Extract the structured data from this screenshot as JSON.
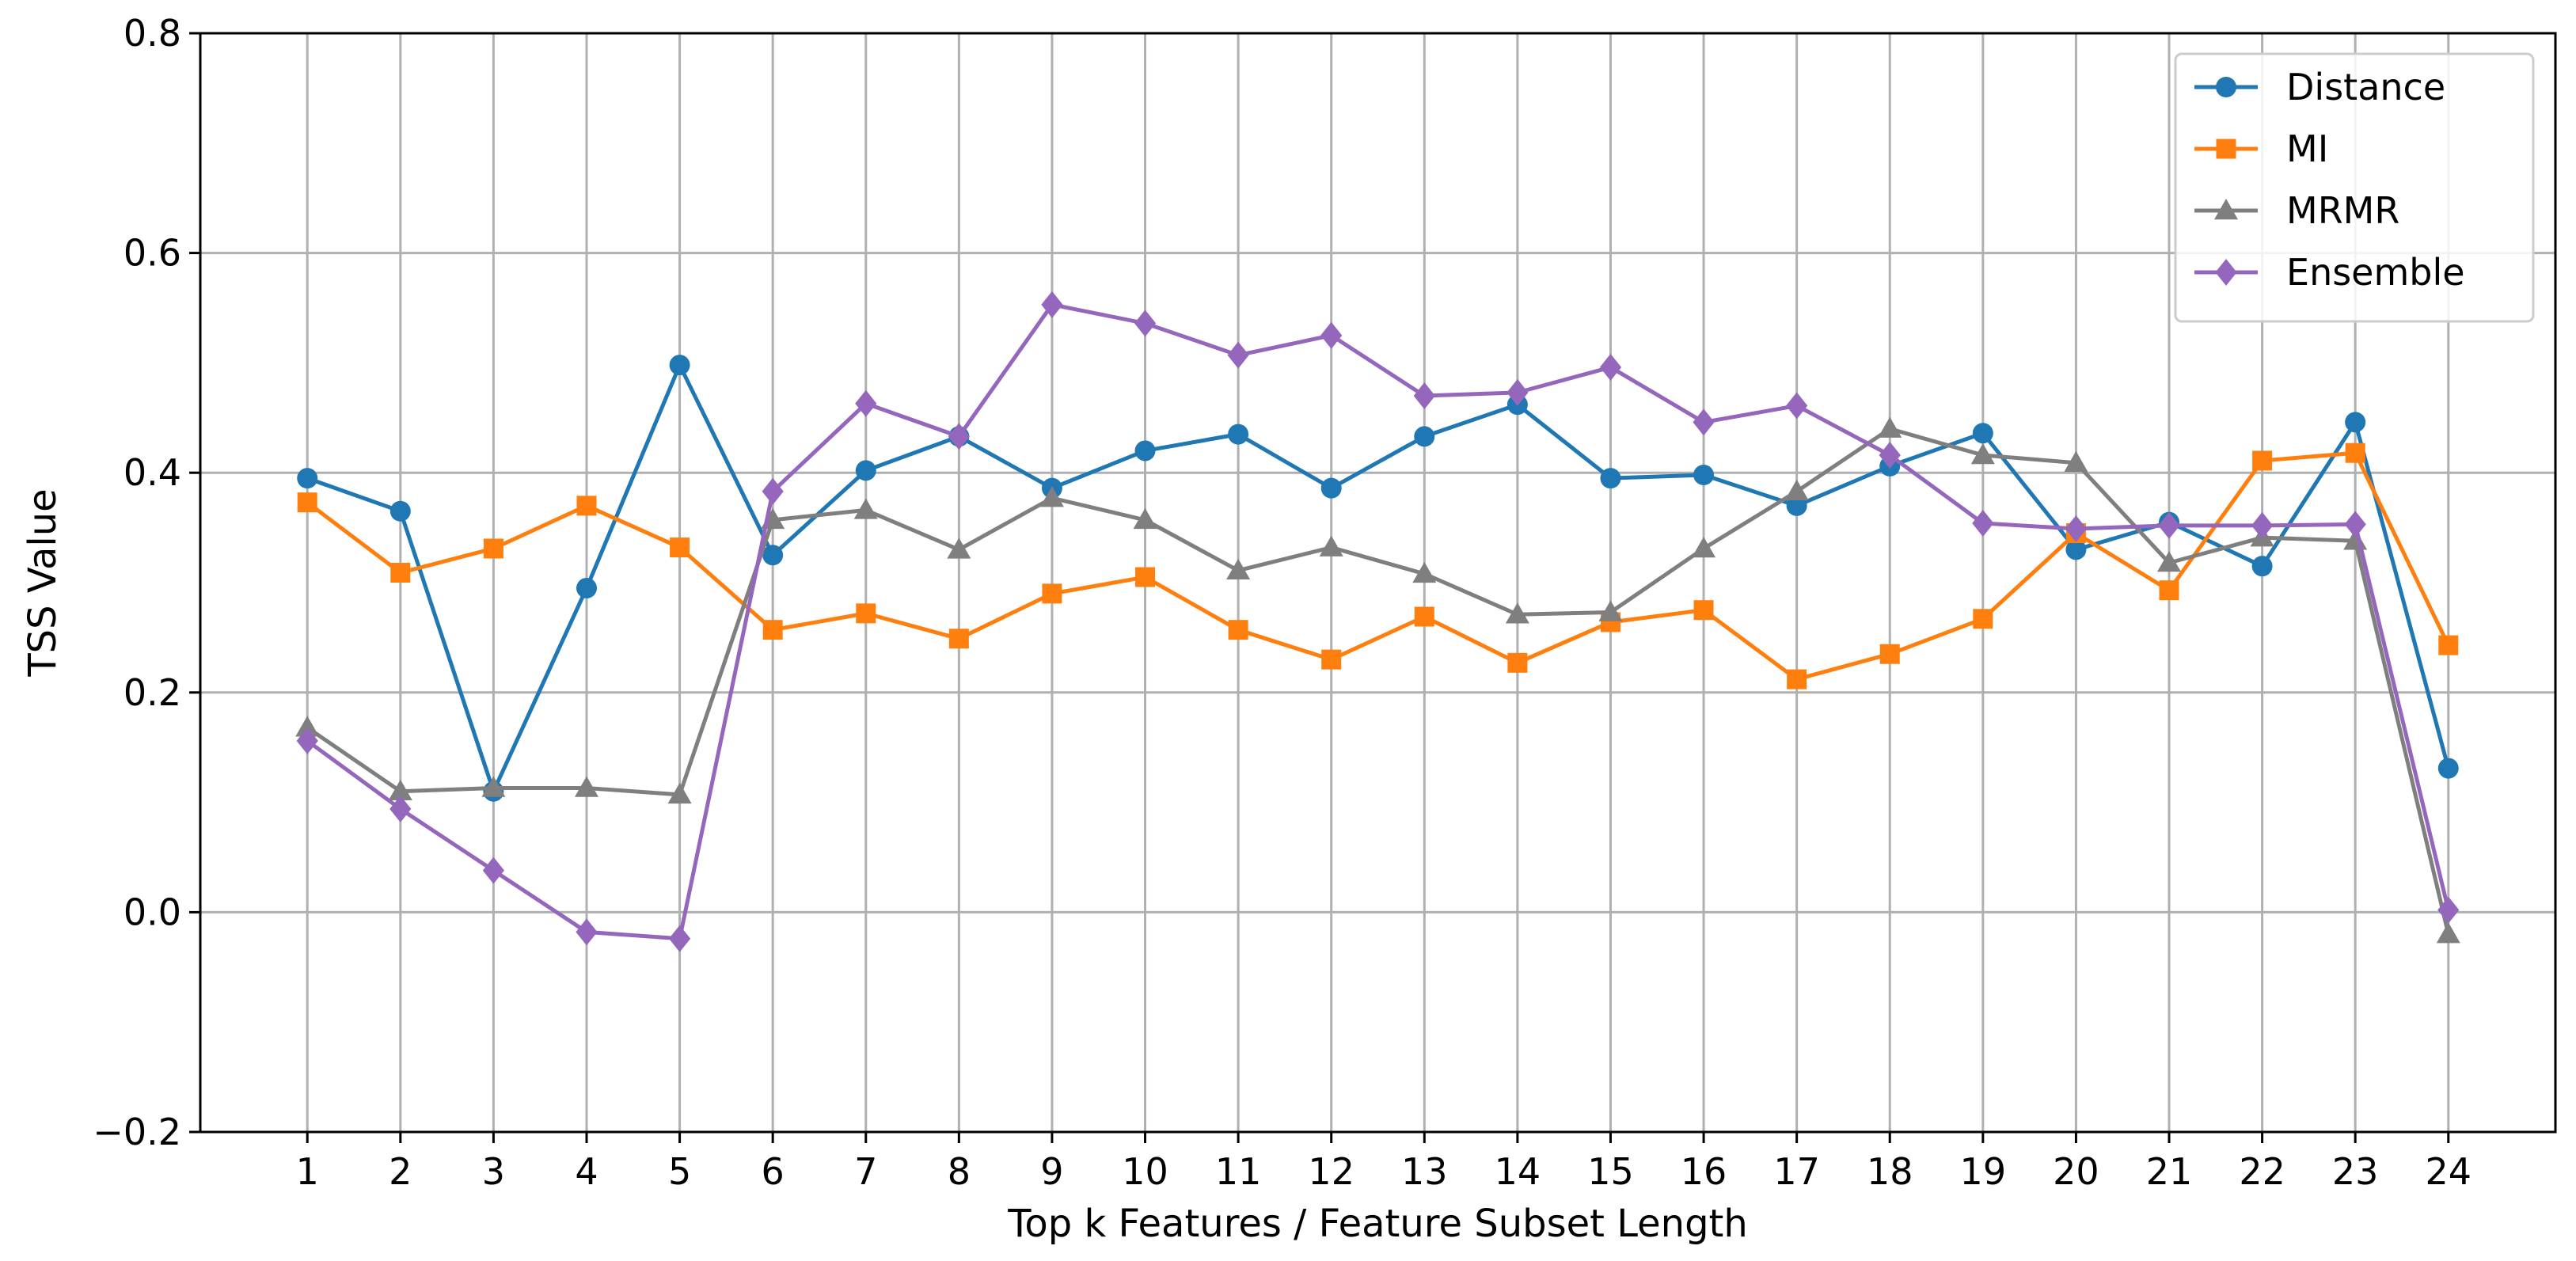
{
  "chart_data": {
    "type": "line",
    "title": "",
    "xlabel": "Top k Features / Feature Subset Length",
    "ylabel": "TSS Value",
    "x": [
      1,
      2,
      3,
      4,
      5,
      6,
      7,
      8,
      9,
      10,
      11,
      12,
      13,
      14,
      15,
      16,
      17,
      18,
      19,
      20,
      21,
      22,
      23,
      24
    ],
    "xlim": [
      -0.15,
      25.15
    ],
    "ylim": [
      -0.2,
      0.8
    ],
    "yticks": [
      "-0.2",
      "0.0",
      "0.2",
      "0.4",
      "0.6",
      "0.8"
    ],
    "grid": true,
    "legend_position": "top-right",
    "series": [
      {
        "name": "Distance",
        "color": "#1f77b4",
        "marker": "circle",
        "values": [
          0.395,
          0.365,
          0.11,
          0.295,
          0.498,
          0.325,
          0.402,
          0.433,
          0.386,
          0.42,
          0.435,
          0.386,
          0.433,
          0.462,
          0.395,
          0.398,
          0.37,
          0.406,
          0.436,
          0.33,
          0.355,
          0.315,
          0.446,
          0.131
        ]
      },
      {
        "name": "MI",
        "color": "#ff7f0e",
        "marker": "square",
        "values": [
          0.373,
          0.309,
          0.331,
          0.37,
          0.332,
          0.257,
          0.272,
          0.249,
          0.29,
          0.305,
          0.257,
          0.23,
          0.269,
          0.227,
          0.264,
          0.275,
          0.212,
          0.235,
          0.267,
          0.345,
          0.293,
          0.411,
          0.418,
          0.243
        ]
      },
      {
        "name": "MRMR",
        "color": "#7f7f7f",
        "marker": "triangle",
        "values": [
          0.168,
          0.11,
          0.113,
          0.113,
          0.107,
          0.357,
          0.366,
          0.33,
          0.377,
          0.357,
          0.311,
          0.332,
          0.308,
          0.271,
          0.273,
          0.331,
          0.383,
          0.44,
          0.416,
          0.409,
          0.318,
          0.341,
          0.338,
          -0.02
        ]
      },
      {
        "name": "Ensemble",
        "color": "#9467bd",
        "marker": "diamond",
        "values": [
          0.156,
          0.094,
          0.038,
          -0.018,
          -0.024,
          0.383,
          0.463,
          0.433,
          0.553,
          0.536,
          0.507,
          0.525,
          0.47,
          0.473,
          0.496,
          0.446,
          0.461,
          0.416,
          0.354,
          0.349,
          0.352,
          0.352,
          0.353,
          0.002
        ]
      }
    ]
  }
}
